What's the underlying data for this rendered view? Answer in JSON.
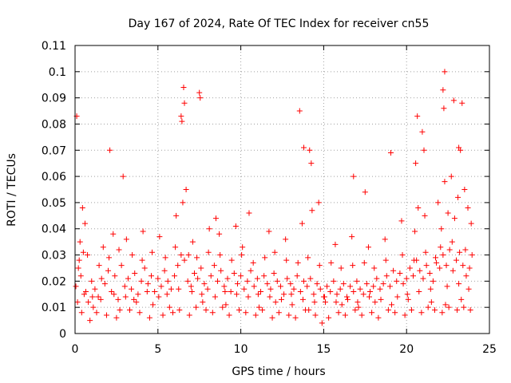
{
  "chart_data": {
    "type": "scatter",
    "title": "Day 167 of 2024, Rate Of TEC Index for receiver cn55",
    "xlabel": "GPS time / hours",
    "ylabel": "ROTI / TECUs",
    "xlim": [
      0,
      25
    ],
    "ylim": [
      0,
      0.11
    ],
    "xticks": [
      0,
      5,
      10,
      15,
      20,
      25
    ],
    "xtick_labels": [
      "0",
      "5",
      "10",
      "15",
      "20",
      "25"
    ],
    "yticks": [
      0,
      0.01,
      0.02,
      0.03,
      0.04,
      0.05,
      0.06,
      0.07,
      0.08,
      0.09,
      0.1,
      0.11
    ],
    "ytick_labels": [
      "0",
      "0.01",
      "0.02",
      "0.03",
      "0.04",
      "0.05",
      "0.06",
      "0.07",
      "0.08",
      "0.09",
      "0.1",
      "0.11"
    ],
    "grid": true,
    "marker": "+",
    "marker_color": "#ff0000",
    "series": [
      {
        "name": "ROTI",
        "x": [
          0.05,
          0.2,
          0.35,
          0.5,
          0.65,
          0.8,
          1.0,
          1.2,
          1.4,
          1.6,
          1.8,
          2.0,
          2.2,
          2.4,
          2.6,
          2.8,
          3.0,
          3.2,
          3.4,
          3.6,
          3.8,
          4.0,
          4.2,
          4.4,
          4.6,
          4.8,
          5.0,
          5.2,
          5.4,
          5.6,
          5.8,
          6.0,
          6.2,
          6.4,
          6.6,
          6.8,
          7.0,
          7.2,
          7.4,
          7.6,
          7.8,
          8.0,
          8.2,
          8.4,
          8.6,
          8.8,
          9.0,
          9.2,
          9.4,
          9.6,
          9.8,
          10.0,
          10.2,
          10.4,
          10.6,
          10.8,
          11.0,
          11.2,
          11.4,
          11.6,
          11.8,
          12.0,
          12.2,
          12.4,
          12.6,
          12.8,
          13.0,
          13.2,
          13.4,
          13.6,
          13.8,
          14.0,
          14.2,
          14.4,
          14.6,
          14.8,
          15.0,
          15.2,
          15.4,
          15.6,
          15.8,
          16.0,
          16.2,
          16.4,
          16.6,
          16.8,
          17.0,
          17.2,
          17.4,
          17.6,
          17.8,
          18.0,
          18.2,
          18.4,
          18.6,
          18.8,
          19.0,
          19.2,
          19.4,
          19.6,
          19.8,
          20.0,
          20.2,
          20.4,
          20.6,
          20.8,
          21.0,
          21.2,
          21.4,
          21.6,
          21.8,
          22.0,
          22.2,
          22.4,
          22.6,
          22.8,
          23.0,
          23.2,
          23.4,
          23.6,
          23.8,
          0.3,
          0.6,
          1.1,
          1.7,
          2.3,
          2.7,
          3.1,
          3.7,
          4.1,
          4.7,
          5.1,
          5.7,
          6.1,
          6.5,
          6.7,
          7.1,
          7.7,
          8.1,
          8.5,
          8.7,
          9.1,
          9.7,
          10.1,
          10.5,
          11.1,
          11.7,
          12.1,
          12.7,
          13.1,
          13.7,
          14.1,
          14.3,
          14.7,
          15.1,
          15.7,
          16.1,
          16.7,
          17.1,
          17.7,
          18.1,
          18.7,
          19.1,
          19.7,
          20.1,
          20.5,
          20.7,
          21.1,
          21.5,
          21.9,
          22.1,
          22.3,
          22.5,
          22.7,
          22.9,
          23.1,
          23.3,
          23.5,
          23.7,
          23.9,
          0.15,
          0.45,
          0.9,
          1.3,
          1.9,
          2.5,
          3.3,
          3.9,
          4.5,
          5.3,
          5.9,
          6.3,
          6.9,
          7.3,
          7.9,
          8.3,
          8.9,
          9.3,
          9.9,
          10.3,
          10.9,
          11.3,
          11.9,
          12.3,
          12.9,
          13.3,
          13.9,
          14.5,
          14.9,
          15.3,
          15.9,
          16.3,
          16.9,
          17.3,
          17.9,
          18.3,
          18.9,
          19.3,
          19.9,
          20.3,
          20.9,
          21.3,
          21.7,
          22.15,
          22.35,
          22.55,
          23.05,
          23.45,
          23.85,
          0.4,
          2.1,
          2.9,
          6.45,
          6.55,
          6.6,
          6.4,
          7.5,
          7.55,
          13.55,
          13.8,
          14.25,
          14.15,
          16.8,
          17.5,
          19.05,
          20.55,
          20.65,
          20.95,
          21.05,
          22.25,
          22.3,
          22.2,
          22.85,
          23.15,
          23.25,
          23.35,
          0.1,
          0.25,
          0.55,
          0.75,
          1.05,
          1.45,
          1.55,
          2.05,
          2.35,
          2.65,
          3.05,
          3.45,
          3.55,
          4.05,
          4.35,
          4.65,
          5.05,
          5.45,
          5.55,
          6.05,
          6.25,
          6.85,
          7.05,
          7.35,
          7.65,
          8.05,
          8.45,
          8.75,
          9.05,
          9.45,
          9.75,
          10.05,
          10.45,
          10.75,
          11.05,
          11.45,
          11.75,
          12.05,
          12.45,
          12.75,
          13.05,
          13.45,
          13.75,
          14.05,
          14.45,
          14.75,
          15.05,
          15.45,
          15.75,
          16.05,
          16.45,
          16.75,
          17.05,
          17.45,
          17.75,
          18.05,
          18.45,
          18.75,
          19.45,
          19.75,
          20.05,
          20.45,
          20.75,
          21.15,
          21.45,
          21.75,
          22.05,
          22.45,
          22.75,
          23.15,
          23.55,
          23.75,
          23.95
        ],
        "y": [
          0.018,
          0.025,
          0.022,
          0.031,
          0.016,
          0.012,
          0.02,
          0.017,
          0.014,
          0.021,
          0.019,
          0.024,
          0.016,
          0.022,
          0.013,
          0.026,
          0.018,
          0.021,
          0.017,
          0.023,
          0.015,
          0.02,
          0.025,
          0.019,
          0.022,
          0.016,
          0.021,
          0.018,
          0.024,
          0.02,
          0.017,
          0.022,
          0.026,
          0.03,
          0.028,
          0.02,
          0.018,
          0.023,
          0.021,
          0.025,
          0.019,
          0.017,
          0.022,
          0.026,
          0.02,
          0.024,
          0.018,
          0.021,
          0.016,
          0.023,
          0.019,
          0.022,
          0.017,
          0.02,
          0.024,
          0.018,
          0.021,
          0.016,
          0.022,
          0.019,
          0.017,
          0.023,
          0.02,
          0.018,
          0.015,
          0.021,
          0.019,
          0.017,
          0.022,
          0.016,
          0.02,
          0.018,
          0.021,
          0.015,
          0.019,
          0.017,
          0.014,
          0.018,
          0.016,
          0.02,
          0.015,
          0.017,
          0.019,
          0.014,
          0.018,
          0.016,
          0.02,
          0.017,
          0.015,
          0.019,
          0.016,
          0.018,
          0.021,
          0.017,
          0.019,
          0.022,
          0.018,
          0.024,
          0.02,
          0.023,
          0.019,
          0.021,
          0.025,
          0.022,
          0.028,
          0.024,
          0.021,
          0.026,
          0.023,
          0.02,
          0.027,
          0.025,
          0.03,
          0.026,
          0.032,
          0.024,
          0.028,
          0.031,
          0.026,
          0.022,
          0.025,
          0.035,
          0.042,
          0.01,
          0.033,
          0.038,
          0.009,
          0.036,
          0.012,
          0.039,
          0.011,
          0.037,
          0.01,
          0.045,
          0.05,
          0.055,
          0.035,
          0.012,
          0.04,
          0.044,
          0.038,
          0.011,
          0.041,
          0.033,
          0.046,
          0.01,
          0.039,
          0.012,
          0.036,
          0.011,
          0.042,
          0.009,
          0.047,
          0.05,
          0.012,
          0.034,
          0.011,
          0.037,
          0.01,
          0.033,
          0.012,
          0.036,
          0.011,
          0.043,
          0.013,
          0.039,
          0.048,
          0.045,
          0.012,
          0.05,
          0.04,
          0.058,
          0.046,
          0.06,
          0.044,
          0.052,
          0.013,
          0.055,
          0.048,
          0.042,
          0.012,
          0.048,
          0.005,
          0.008,
          0.007,
          0.006,
          0.009,
          0.008,
          0.006,
          0.007,
          0.008,
          0.009,
          0.007,
          0.01,
          0.009,
          0.008,
          0.01,
          0.007,
          0.009,
          0.008,
          0.007,
          0.009,
          0.006,
          0.008,
          0.007,
          0.006,
          0.009,
          0.007,
          0.004,
          0.006,
          0.008,
          0.007,
          0.009,
          0.007,
          0.008,
          0.006,
          0.009,
          0.008,
          0.007,
          0.009,
          0.008,
          0.01,
          0.009,
          0.008,
          0.011,
          0.01,
          0.009,
          0.01,
          0.009,
          0.008,
          0.07,
          0.06,
          0.081,
          0.094,
          0.088,
          0.083,
          0.092,
          0.09,
          0.085,
          0.071,
          0.065,
          0.07,
          0.06,
          0.054,
          0.069,
          0.065,
          0.083,
          0.077,
          0.07,
          0.086,
          0.1,
          0.093,
          0.089,
          0.071,
          0.07,
          0.088,
          0.083,
          0.028,
          0.015,
          0.03,
          0.014,
          0.026,
          0.013,
          0.029,
          0.015,
          0.032,
          0.014,
          0.03,
          0.013,
          0.028,
          0.016,
          0.031,
          0.014,
          0.029,
          0.015,
          0.033,
          0.017,
          0.03,
          0.016,
          0.029,
          0.015,
          0.031,
          0.014,
          0.03,
          0.016,
          0.028,
          0.015,
          0.03,
          0.014,
          0.027,
          0.015,
          0.029,
          0.014,
          0.031,
          0.013,
          0.028,
          0.015,
          0.027,
          0.013,
          0.029,
          0.012,
          0.026,
          0.014,
          0.027,
          0.012,
          0.025,
          0.013,
          0.026,
          0.012,
          0.027,
          0.014,
          0.025,
          0.013,
          0.028,
          0.014,
          0.03,
          0.015,
          0.028,
          0.016,
          0.031,
          0.017,
          0.029,
          0.033,
          0.018,
          0.035,
          0.019,
          0.032,
          0.017,
          0.03
        ]
      }
    ]
  }
}
